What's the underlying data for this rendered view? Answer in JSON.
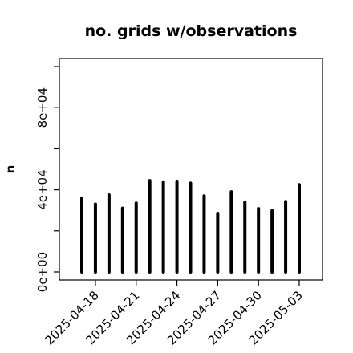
{
  "chart_data": {
    "type": "bar",
    "title": "no. grids w/observations",
    "xlabel": "",
    "ylabel": "n",
    "ylim": [
      0,
      100000
    ],
    "y_ticks": [
      {
        "value": 0,
        "label": "0e+00"
      },
      {
        "value": 20000,
        "label": ""
      },
      {
        "value": 40000,
        "label": "4e+04"
      },
      {
        "value": 60000,
        "label": ""
      },
      {
        "value": 80000,
        "label": "8e+04"
      },
      {
        "value": 100000,
        "label": ""
      }
    ],
    "x_ticks": [
      {
        "date": "2025-04-18",
        "label": "2025-04-18",
        "color": "#000000"
      },
      {
        "date": "2025-04-21",
        "label": "2025-04-21",
        "color": "#000000"
      },
      {
        "date": "2025-04-24",
        "label": "2025-04-24",
        "color": "#228B22"
      },
      {
        "date": "2025-04-27",
        "label": "2025-04-27",
        "color": "#000000"
      },
      {
        "date": "2025-04-30",
        "label": "2025-04-30",
        "color": "#000000"
      },
      {
        "date": "2025-05-03",
        "label": "2025-05-03",
        "color": "#000000"
      }
    ],
    "categories": [
      "2025-04-17",
      "2025-04-18",
      "2025-04-19",
      "2025-04-20",
      "2025-04-21",
      "2025-04-22",
      "2025-04-23",
      "2025-04-24",
      "2025-04-25",
      "2025-04-26",
      "2025-04-27",
      "2025-04-28",
      "2025-04-29",
      "2025-04-30",
      "2025-05-01",
      "2025-05-02",
      "2025-05-03"
    ],
    "values": [
      36000,
      33000,
      37500,
      31000,
      33500,
      44500,
      43800,
      44200,
      43200,
      37000,
      28500,
      39000,
      34000,
      30800,
      29800,
      34300,
      42500
    ],
    "bar_color": "#000000",
    "grid": false,
    "legend": "none"
  }
}
